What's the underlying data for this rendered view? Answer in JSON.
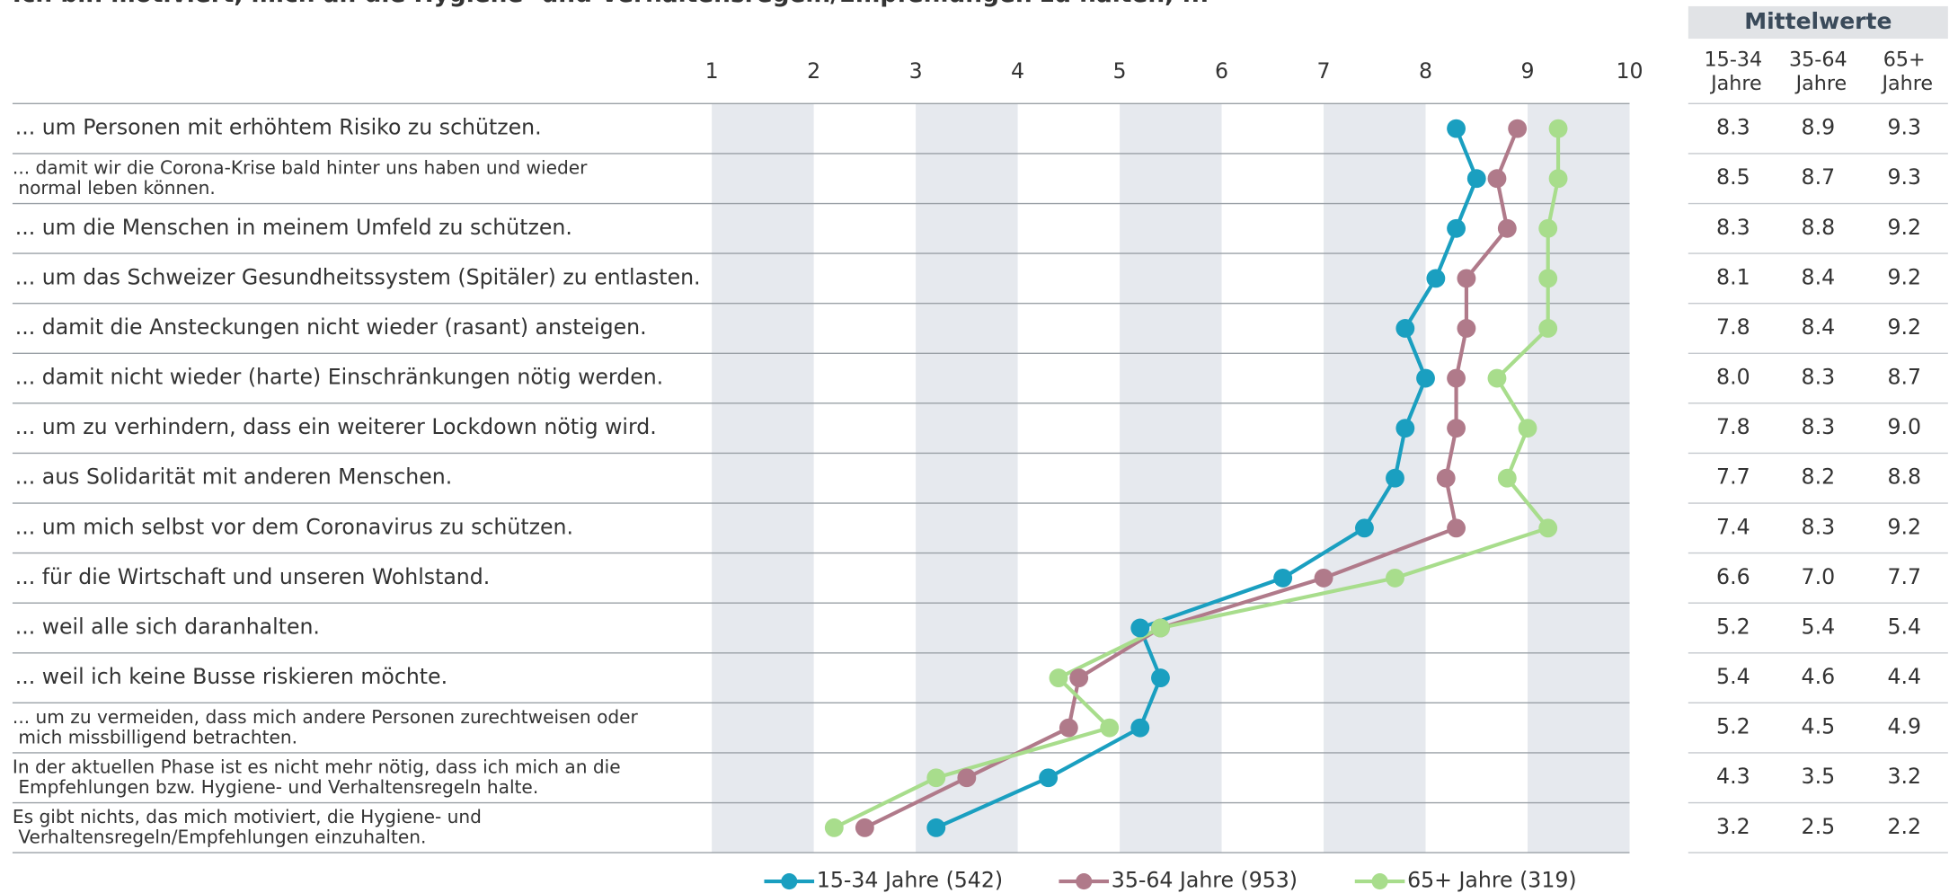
{
  "chart_data": {
    "type": "line",
    "title": "Ich bin motiviert, mich an die Hygiene- und Verhaltensregeln/Empfehlungen zu halten, ...",
    "categories": [
      "... um Personen mit erhöhtem Risiko zu schützen.",
      "... damit wir die Corona-Krise bald hinter uns haben und wieder normal leben können.",
      "... um die Menschen in meinem Umfeld zu schützen.",
      "... um das Schweizer Gesundheitssystem (Spitäler) zu entlasten.",
      "... damit die Ansteckungen nicht wieder (rasant) ansteigen.",
      "... damit nicht wieder (harte) Einschränkungen nötig werden.",
      "... um zu verhindern, dass ein weiterer Lockdown nötig wird.",
      "... aus Solidarität mit anderen Menschen.",
      "... um mich selbst vor dem Coronavirus zu schützen.",
      "... für die Wirtschaft und unseren Wohlstand.",
      "... weil alle sich daranhalten.",
      "... weil ich keine Busse riskieren möchte.",
      "... um zu vermeiden, dass mich andere Personen zurechtweisen oder mich missbilligend betrachten.",
      "In der aktuellen Phase ist es nicht mehr nötig, dass ich mich an die Empfehlungen bzw. Hygiene- und Verhaltensregeln halte.",
      "Es gibt nichts, das mich motiviert, die Hygiene- und Verhaltensregeln/Empfehlungen einzuhalten."
    ],
    "series": [
      {
        "name": "15-34 Jahre (542)",
        "table_header": "15-34 Jahre",
        "color": "#1a9fc0",
        "values": [
          8.3,
          8.5,
          8.3,
          8.1,
          7.8,
          8.0,
          7.8,
          7.7,
          7.4,
          6.6,
          5.2,
          5.4,
          5.2,
          4.3,
          3.2
        ],
        "value_labels": [
          "8.3",
          "8.5",
          "8.3",
          "8.1",
          "7.8",
          "8.0",
          "7.8",
          "7.7",
          "7.4",
          "6.6",
          "5.2",
          "5.4",
          "5.2",
          "4.3",
          "3.2"
        ]
      },
      {
        "name": "35-64 Jahre (953)",
        "table_header": "35-64 Jahre",
        "color": "#b07a8a",
        "values": [
          8.9,
          8.7,
          8.8,
          8.4,
          8.4,
          8.3,
          8.3,
          8.2,
          8.3,
          7.0,
          5.4,
          4.6,
          4.5,
          3.5,
          2.5
        ],
        "value_labels": [
          "8.9",
          "8.7",
          "8.8",
          "8.4",
          "8.4",
          "8.3",
          "8.3",
          "8.2",
          "8.3",
          "7.0",
          "5.4",
          "4.6",
          "4.5",
          "3.5",
          "2.5"
        ]
      },
      {
        "name": "65+ Jahre (319)",
        "table_header": "65+ Jahre",
        "color": "#a8dd8c",
        "values": [
          9.3,
          9.3,
          9.2,
          9.2,
          9.2,
          8.7,
          9.0,
          8.8,
          9.2,
          7.7,
          5.4,
          4.4,
          4.9,
          3.2,
          2.2
        ],
        "value_labels": [
          "9.3",
          "9.3",
          "9.2",
          "9.2",
          "9.2",
          "8.7",
          "9.0",
          "8.8",
          "9.2",
          "7.7",
          "5.4",
          "4.4",
          "4.9",
          "3.2",
          "2.2"
        ]
      }
    ],
    "table_title": "Mittelwerte",
    "xlim": [
      1,
      10
    ],
    "xticks": [
      1,
      2,
      3,
      4,
      5,
      6,
      7,
      8,
      9,
      10
    ],
    "legend": "bottom"
  }
}
